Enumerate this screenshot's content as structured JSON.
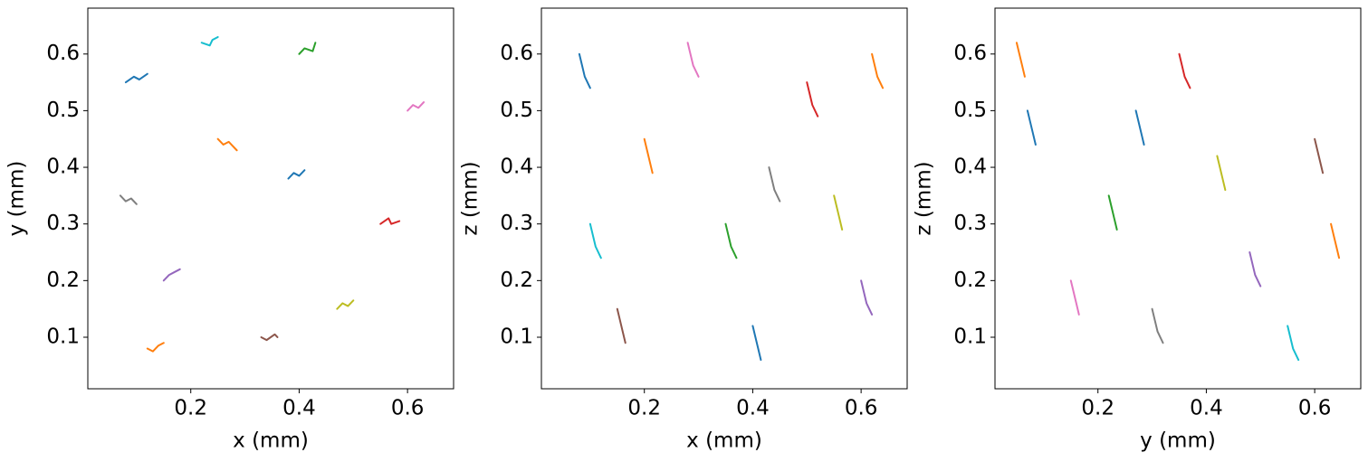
{
  "chart_data": [
    {
      "type": "line",
      "xlabel": "x (mm)",
      "ylabel": "y (mm)",
      "xlim": [
        0.01,
        0.685
      ],
      "ylim": [
        0.009,
        0.681
      ],
      "xticks": [
        0.2,
        0.4,
        0.6
      ],
      "yticks": [
        0.1,
        0.2,
        0.3,
        0.4,
        0.5,
        0.6
      ],
      "series": [
        {
          "color": "#1f77b4",
          "x": [
            0.08,
            0.095,
            0.105,
            0.12
          ],
          "values": [
            0.55,
            0.56,
            0.555,
            0.565
          ]
        },
        {
          "color": "#ff7f0e",
          "x": [
            0.25,
            0.26,
            0.27,
            0.285
          ],
          "values": [
            0.45,
            0.44,
            0.445,
            0.43
          ]
        },
        {
          "color": "#2ca02c",
          "x": [
            0.4,
            0.41,
            0.425,
            0.43
          ],
          "values": [
            0.6,
            0.61,
            0.605,
            0.62
          ]
        },
        {
          "color": "#d62728",
          "x": [
            0.55,
            0.565,
            0.57,
            0.585
          ],
          "values": [
            0.3,
            0.31,
            0.3,
            0.305
          ]
        },
        {
          "color": "#9467bd",
          "x": [
            0.15,
            0.16,
            0.17,
            0.18
          ],
          "values": [
            0.2,
            0.21,
            0.215,
            0.22
          ]
        },
        {
          "color": "#8c564b",
          "x": [
            0.33,
            0.34,
            0.355,
            0.36
          ],
          "values": [
            0.1,
            0.095,
            0.105,
            0.1
          ]
        },
        {
          "color": "#e377c2",
          "x": [
            0.6,
            0.61,
            0.62,
            0.63
          ],
          "values": [
            0.5,
            0.51,
            0.505,
            0.515
          ]
        },
        {
          "color": "#7f7f7f",
          "x": [
            0.07,
            0.08,
            0.09,
            0.1
          ],
          "values": [
            0.35,
            0.34,
            0.345,
            0.335
          ]
        },
        {
          "color": "#bcbd22",
          "x": [
            0.47,
            0.48,
            0.49,
            0.5
          ],
          "values": [
            0.15,
            0.16,
            0.155,
            0.165
          ]
        },
        {
          "color": "#17becf",
          "x": [
            0.22,
            0.235,
            0.24,
            0.25
          ],
          "values": [
            0.62,
            0.615,
            0.625,
            0.63
          ]
        },
        {
          "color": "#1f77b4",
          "x": [
            0.38,
            0.39,
            0.4,
            0.41
          ],
          "values": [
            0.38,
            0.39,
            0.385,
            0.395
          ]
        },
        {
          "color": "#ff7f0e",
          "x": [
            0.12,
            0.13,
            0.14,
            0.15
          ],
          "values": [
            0.08,
            0.075,
            0.085,
            0.09
          ]
        }
      ]
    },
    {
      "type": "line",
      "xlabel": "x (mm)",
      "ylabel": "z (mm)",
      "xlim": [
        0.01,
        0.685
      ],
      "ylim": [
        0.009,
        0.681
      ],
      "xticks": [
        0.2,
        0.4,
        0.6
      ],
      "yticks": [
        0.1,
        0.2,
        0.3,
        0.4,
        0.5,
        0.6
      ],
      "series": [
        {
          "color": "#1f77b4",
          "x": [
            0.08,
            0.085,
            0.09,
            0.1
          ],
          "values": [
            0.6,
            0.58,
            0.56,
            0.54
          ]
        },
        {
          "color": "#ff7f0e",
          "x": [
            0.2,
            0.205,
            0.21,
            0.215
          ],
          "values": [
            0.45,
            0.43,
            0.41,
            0.39
          ]
        },
        {
          "color": "#2ca02c",
          "x": [
            0.35,
            0.355,
            0.36,
            0.37
          ],
          "values": [
            0.3,
            0.28,
            0.26,
            0.24
          ]
        },
        {
          "color": "#d62728",
          "x": [
            0.5,
            0.505,
            0.51,
            0.52
          ],
          "values": [
            0.55,
            0.53,
            0.51,
            0.49
          ]
        },
        {
          "color": "#9467bd",
          "x": [
            0.6,
            0.605,
            0.61,
            0.62
          ],
          "values": [
            0.2,
            0.18,
            0.16,
            0.14
          ]
        },
        {
          "color": "#8c564b",
          "x": [
            0.15,
            0.155,
            0.16,
            0.165
          ],
          "values": [
            0.15,
            0.13,
            0.11,
            0.09
          ]
        },
        {
          "color": "#e377c2",
          "x": [
            0.28,
            0.285,
            0.29,
            0.3
          ],
          "values": [
            0.62,
            0.6,
            0.58,
            0.56
          ]
        },
        {
          "color": "#7f7f7f",
          "x": [
            0.43,
            0.435,
            0.44,
            0.45
          ],
          "values": [
            0.4,
            0.38,
            0.36,
            0.34
          ]
        },
        {
          "color": "#bcbd22",
          "x": [
            0.55,
            0.555,
            0.56,
            0.565
          ],
          "values": [
            0.35,
            0.33,
            0.31,
            0.29
          ]
        },
        {
          "color": "#17becf",
          "x": [
            0.1,
            0.105,
            0.11,
            0.12
          ],
          "values": [
            0.3,
            0.28,
            0.26,
            0.24
          ]
        },
        {
          "color": "#1f77b4",
          "x": [
            0.4,
            0.405,
            0.41,
            0.415
          ],
          "values": [
            0.12,
            0.1,
            0.08,
            0.06
          ]
        },
        {
          "color": "#ff7f0e",
          "x": [
            0.62,
            0.625,
            0.63,
            0.64
          ],
          "values": [
            0.6,
            0.58,
            0.56,
            0.54
          ]
        }
      ]
    },
    {
      "type": "line",
      "xlabel": "y (mm)",
      "ylabel": "z (mm)",
      "xlim": [
        0.01,
        0.685
      ],
      "ylim": [
        0.009,
        0.681
      ],
      "xticks": [
        0.2,
        0.4,
        0.6
      ],
      "yticks": [
        0.1,
        0.2,
        0.3,
        0.4,
        0.5,
        0.6
      ],
      "series": [
        {
          "color": "#1f77b4",
          "x": [
            0.07,
            0.075,
            0.08,
            0.085
          ],
          "values": [
            0.5,
            0.48,
            0.46,
            0.44
          ]
        },
        {
          "color": "#ff7f0e",
          "x": [
            0.05,
            0.055,
            0.06,
            0.065
          ],
          "values": [
            0.62,
            0.6,
            0.58,
            0.56
          ]
        },
        {
          "color": "#2ca02c",
          "x": [
            0.22,
            0.225,
            0.23,
            0.235
          ],
          "values": [
            0.35,
            0.33,
            0.31,
            0.29
          ]
        },
        {
          "color": "#d62728",
          "x": [
            0.35,
            0.355,
            0.36,
            0.37
          ],
          "values": [
            0.6,
            0.58,
            0.56,
            0.54
          ]
        },
        {
          "color": "#9467bd",
          "x": [
            0.48,
            0.485,
            0.49,
            0.5
          ],
          "values": [
            0.25,
            0.23,
            0.21,
            0.19
          ]
        },
        {
          "color": "#8c564b",
          "x": [
            0.6,
            0.605,
            0.61,
            0.615
          ],
          "values": [
            0.45,
            0.43,
            0.41,
            0.39
          ]
        },
        {
          "color": "#e377c2",
          "x": [
            0.15,
            0.155,
            0.16,
            0.165
          ],
          "values": [
            0.2,
            0.18,
            0.16,
            0.14
          ]
        },
        {
          "color": "#7f7f7f",
          "x": [
            0.3,
            0.305,
            0.31,
            0.32
          ],
          "values": [
            0.15,
            0.13,
            0.11,
            0.09
          ]
        },
        {
          "color": "#bcbd22",
          "x": [
            0.42,
            0.425,
            0.43,
            0.435
          ],
          "values": [
            0.42,
            0.4,
            0.38,
            0.36
          ]
        },
        {
          "color": "#17becf",
          "x": [
            0.55,
            0.555,
            0.56,
            0.57
          ],
          "values": [
            0.12,
            0.1,
            0.08,
            0.06
          ]
        },
        {
          "color": "#1f77b4",
          "x": [
            0.27,
            0.275,
            0.28,
            0.285
          ],
          "values": [
            0.5,
            0.48,
            0.46,
            0.44
          ]
        },
        {
          "color": "#ff7f0e",
          "x": [
            0.63,
            0.635,
            0.64,
            0.645
          ],
          "values": [
            0.3,
            0.28,
            0.26,
            0.24
          ]
        }
      ]
    }
  ]
}
